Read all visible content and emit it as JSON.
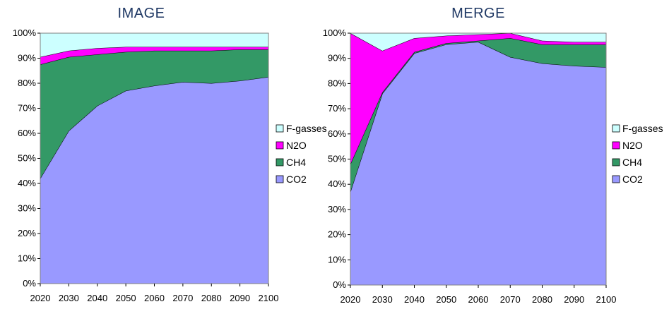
{
  "chart_data": [
    {
      "type": "area",
      "stacking": "percent",
      "title": "IMAGE",
      "x": [
        "2020",
        "2030",
        "2040",
        "2050",
        "2060",
        "2070",
        "2080",
        "2090",
        "2100"
      ],
      "y_ticks": [
        "0%",
        "10%",
        "20%",
        "30%",
        "40%",
        "50%",
        "60%",
        "70%",
        "80%",
        "90%",
        "100%"
      ],
      "ylim": [
        0,
        100
      ],
      "grid": false,
      "legend_position": "right",
      "series": [
        {
          "name": "CO2",
          "color": "#9999ff",
          "values": [
            42,
            61,
            71,
            77,
            79,
            80.5,
            80,
            81,
            82.5
          ]
        },
        {
          "name": "CH4",
          "color": "#339966",
          "values": [
            45.5,
            29.5,
            20.5,
            15.5,
            14,
            12.5,
            13,
            12.5,
            11
          ]
        },
        {
          "name": "N2O",
          "color": "#ff00ff",
          "values": [
            3,
            2.5,
            2.5,
            2,
            1.5,
            1.5,
            1.5,
            1,
            1
          ]
        },
        {
          "name": "F-gasses",
          "color": "#ccffff",
          "values": [
            9.5,
            7,
            6,
            5.5,
            5.5,
            5.5,
            5.5,
            5.5,
            5.5
          ]
        }
      ],
      "legend_order": [
        "F-gasses",
        "N2O",
        "CH4",
        "CO2"
      ]
    },
    {
      "type": "area",
      "stacking": "percent",
      "title": "MERGE",
      "x": [
        "2020",
        "2030",
        "2040",
        "2050",
        "2060",
        "2070",
        "2080",
        "2090",
        "2100"
      ],
      "y_ticks": [
        "0%",
        "10%",
        "20%",
        "30%",
        "40%",
        "50%",
        "60%",
        "70%",
        "80%",
        "90%",
        "100%"
      ],
      "ylim": [
        0,
        100
      ],
      "grid": false,
      "legend_position": "right",
      "series": [
        {
          "name": "CO2",
          "color": "#9999ff",
          "values": [
            37,
            76,
            92,
            95.5,
            96.5,
            90.5,
            88,
            87,
            86.5
          ]
        },
        {
          "name": "CH4",
          "color": "#339966",
          "values": [
            11,
            0.5,
            0.5,
            0.5,
            0.5,
            7.5,
            7.5,
            8.5,
            9
          ]
        },
        {
          "name": "N2O",
          "color": "#ff00ff",
          "values": [
            52,
            16.5,
            5.5,
            3,
            2.5,
            2,
            1.5,
            1,
            1
          ]
        },
        {
          "name": "F-gasses",
          "color": "#ccffff",
          "values": [
            0,
            7,
            2,
            1,
            0.5,
            0,
            3,
            3.5,
            3.5
          ]
        }
      ],
      "legend_order": [
        "F-gasses",
        "N2O",
        "CH4",
        "CO2"
      ]
    }
  ]
}
